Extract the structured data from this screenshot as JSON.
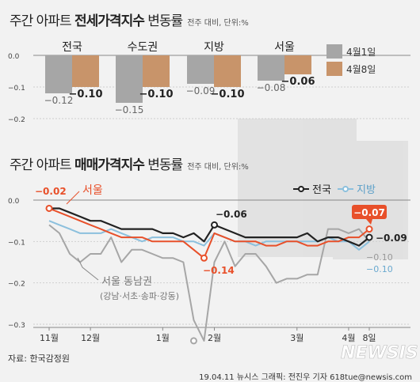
{
  "top": {
    "title_prefix": "주간 아파트 ",
    "title_bold": "전세가격지수",
    "title_suffix": " 변동률",
    "unit": "전주 대비, 단위:%"
  },
  "bottom": {
    "title_prefix": "주간 아파트 ",
    "title_bold": "매매가격지수",
    "title_suffix": " 변동률",
    "unit": "전주 대비, 단위:%"
  },
  "source": "자료: 한국감정원",
  "credit": "19.04.11 뉴시스 그래픽: 전진우 기자 618tue@newsis.com",
  "watermark": "NEWSIS",
  "colors": {
    "gray_bar": "#a6a6a6",
    "orange_bar": "#c8946a",
    "nation": "#222222",
    "seoul": "#e8502a",
    "region": "#8cc0dd",
    "gangnam": "#a6a6a6",
    "highlight": "#e8502a"
  },
  "chart_data": [
    {
      "type": "bar",
      "categories": [
        "전국",
        "수도권",
        "지방",
        "서울"
      ],
      "series": [
        {
          "name": "4월1일",
          "values": [
            -0.12,
            -0.15,
            -0.09,
            -0.08
          ]
        },
        {
          "name": "4월8일",
          "values": [
            -0.1,
            -0.1,
            -0.1,
            -0.06
          ]
        }
      ],
      "value_labels": [
        [
          "−0.12",
          "−0.15",
          "−0.09",
          "−0.08"
        ],
        [
          "−0.10",
          "−0.10",
          "−0.10",
          "−0.06"
        ]
      ],
      "ylim": [
        -0.2,
        0.0
      ],
      "yticks": [
        "0.0",
        "−0.1",
        "−0.2"
      ],
      "legend": "right"
    },
    {
      "type": "line",
      "x_labels": [
        "11월",
        "12월",
        "1월",
        "2월",
        "3월",
        "4월",
        "8일"
      ],
      "x_label_index": [
        0,
        4,
        11,
        16,
        24,
        29,
        31
      ],
      "ylim": [
        -0.3,
        0.0
      ],
      "yticks": [
        "0.0",
        "−0.1",
        "−0.2",
        "−0.3"
      ],
      "series": [
        {
          "name": "서울",
          "label": "서울",
          "values": [
            -0.02,
            -0.03,
            -0.04,
            -0.05,
            -0.06,
            -0.07,
            -0.08,
            -0.09,
            -0.09,
            -0.09,
            -0.1,
            -0.1,
            -0.1,
            -0.1,
            -0.12,
            -0.14,
            -0.08,
            -0.09,
            -0.1,
            -0.1,
            -0.1,
            -0.11,
            -0.11,
            -0.1,
            -0.1,
            -0.11,
            -0.11,
            -0.1,
            -0.1,
            -0.09,
            -0.09,
            -0.07
          ]
        },
        {
          "name": "전국",
          "label": "전국",
          "values": [
            -0.02,
            -0.02,
            -0.03,
            -0.04,
            -0.05,
            -0.05,
            -0.06,
            -0.07,
            -0.07,
            -0.07,
            -0.07,
            -0.08,
            -0.08,
            -0.09,
            -0.08,
            -0.1,
            -0.06,
            -0.07,
            -0.08,
            -0.09,
            -0.09,
            -0.09,
            -0.09,
            -0.09,
            -0.09,
            -0.08,
            -0.1,
            -0.09,
            -0.09,
            -0.1,
            -0.11,
            -0.09
          ]
        },
        {
          "name": "지방",
          "label": "지방",
          "values": [
            -0.05,
            -0.06,
            -0.07,
            -0.08,
            -0.08,
            -0.08,
            -0.07,
            -0.08,
            -0.09,
            -0.1,
            -0.09,
            -0.09,
            -0.09,
            -0.1,
            -0.1,
            -0.11,
            -0.08,
            -0.09,
            -0.1,
            -0.1,
            -0.11,
            -0.1,
            -0.1,
            -0.1,
            -0.1,
            -0.1,
            -0.1,
            -0.09,
            -0.1,
            -0.1,
            -0.12,
            -0.1
          ]
        },
        {
          "name": "서울 동남권",
          "label": "서울 동남권",
          "sublabel": "(강남·서초·송파·강동)",
          "values": [
            -0.06,
            -0.08,
            -0.13,
            -0.15,
            -0.13,
            -0.13,
            -0.09,
            -0.15,
            -0.12,
            -0.12,
            -0.13,
            -0.14,
            -0.14,
            -0.15,
            -0.29,
            -0.34,
            -0.15,
            -0.1,
            -0.16,
            -0.13,
            -0.13,
            -0.16,
            -0.2,
            -0.19,
            -0.19,
            -0.18,
            -0.18,
            -0.07,
            -0.07,
            -0.08,
            -0.07,
            -0.1
          ]
        }
      ],
      "callouts": [
        {
          "series": "서울",
          "index": 0,
          "text": "−0.02"
        },
        {
          "series": "서울",
          "index": 15,
          "text": "−0.14"
        },
        {
          "series": "전국",
          "index": 16,
          "text": "−0.06"
        },
        {
          "series": "서울",
          "index": 31,
          "text": "−0.07"
        },
        {
          "series": "전국",
          "index": 31,
          "text": "−0.09"
        },
        {
          "series": "서울 동남권",
          "index": 31,
          "text": "−0.10"
        },
        {
          "series": "지방",
          "index": 31,
          "text": "−0.10"
        }
      ],
      "legend": "top-right"
    }
  ]
}
